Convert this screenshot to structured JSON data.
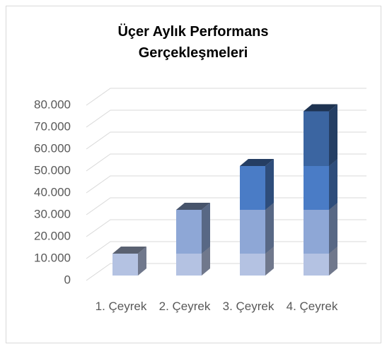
{
  "chart_data": {
    "type": "bar3d_stacked",
    "title": "Üçer Aylık Performans Gerçekleşmeleri",
    "categories": [
      "1. Çeyrek",
      "2. Çeyrek",
      "3. Çeyrek",
      "4. Çeyrek"
    ],
    "series": [
      {
        "color": "#b4c2e2",
        "values": [
          10000,
          10000,
          10000,
          10000
        ]
      },
      {
        "color": "#8ea7d6",
        "values": [
          null,
          20000,
          20000,
          20000
        ]
      },
      {
        "color": "#4a7cc6",
        "values": [
          null,
          null,
          20000,
          20000
        ]
      },
      {
        "color": "#3b65a1",
        "values": [
          null,
          null,
          null,
          25000
        ]
      }
    ],
    "ylim": [
      0,
      80000
    ],
    "yticks": [
      0,
      {
        "value": 10000,
        "label": "10.000"
      },
      {
        "value": 20000,
        "label": "20.000"
      },
      {
        "value": 30000,
        "label": "30.000"
      },
      {
        "value": 40000,
        "label": "40.000"
      },
      {
        "value": 50000,
        "label": "50.000"
      },
      {
        "value": 60000,
        "label": "60.000"
      },
      {
        "value": 70000,
        "label": "70.000"
      },
      {
        "value": 80000,
        "label": "80.000"
      }
    ],
    "grid": true
  }
}
